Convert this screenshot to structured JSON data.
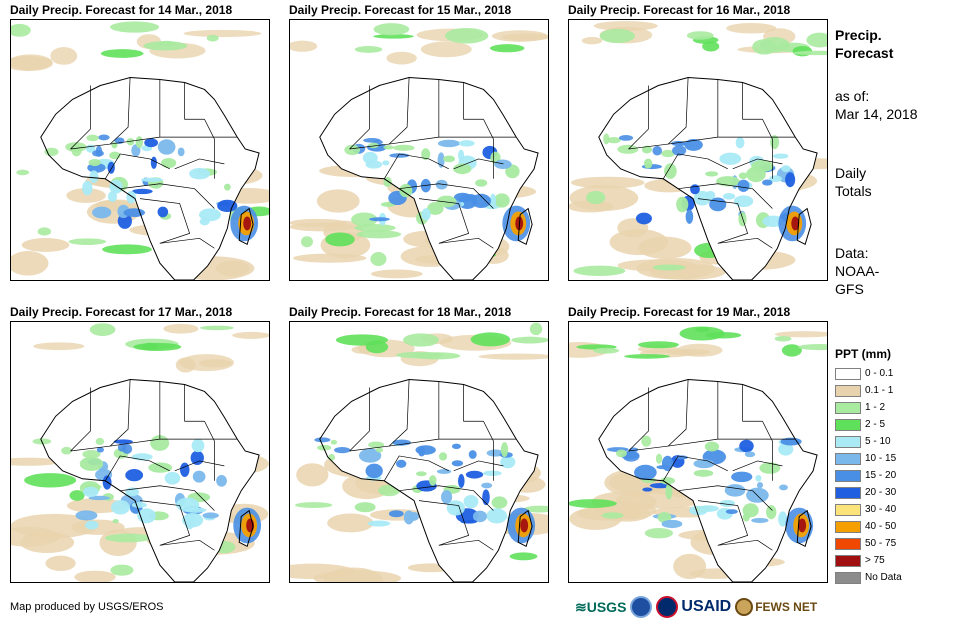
{
  "panels": [
    {
      "title": "Daily Precip. Forecast for 14 Mar., 2018",
      "day": 0
    },
    {
      "title": "Daily Precip. Forecast for 15 Mar., 2018",
      "day": 1
    },
    {
      "title": "Daily Precip. Forecast for 16 Mar., 2018",
      "day": 2
    },
    {
      "title": "Daily Precip. Forecast for 17 Mar., 2018",
      "day": 3
    },
    {
      "title": "Daily Precip. Forecast for 18 Mar., 2018",
      "day": 4
    },
    {
      "title": "Daily Precip. Forecast for 19 Mar., 2018",
      "day": 5
    }
  ],
  "side": {
    "heading_1": "Precip.",
    "heading_2": "Forecast",
    "asof_1": "as of:",
    "asof_2": "Mar 14, 2018",
    "totals_1": "Daily",
    "totals_2": "Totals",
    "data_1": "Data:",
    "data_2": "NOAA-",
    "data_3": "GFS"
  },
  "legend": {
    "title": "PPT (mm)",
    "items": [
      {
        "label": "0 - 0.1",
        "color": "#ffffff"
      },
      {
        "label": "0.1 - 1",
        "color": "#e9d3ae"
      },
      {
        "label": "1 - 2",
        "color": "#a8eaa0"
      },
      {
        "label": "2 - 5",
        "color": "#5fe05a"
      },
      {
        "label": "5 - 10",
        "color": "#a9eaf5"
      },
      {
        "label": "10 - 15",
        "color": "#7ab8ec"
      },
      {
        "label": "15 - 20",
        "color": "#4a8fe6"
      },
      {
        "label": "20 - 30",
        "color": "#1f5fe0"
      },
      {
        "label": "30 - 40",
        "color": "#fde47a"
      },
      {
        "label": "40 - 50",
        "color": "#f5a000"
      },
      {
        "label": "50 - 75",
        "color": "#f04800"
      },
      {
        "label": "> 75",
        "color": "#a01010"
      },
      {
        "label": "No Data",
        "color": "#8c8c8c"
      }
    ]
  },
  "credit": "Map produced by USGS/EROS",
  "logos": {
    "usgs": "≋USGS",
    "usaid": "USAID",
    "fews": "FEWS NET"
  }
}
